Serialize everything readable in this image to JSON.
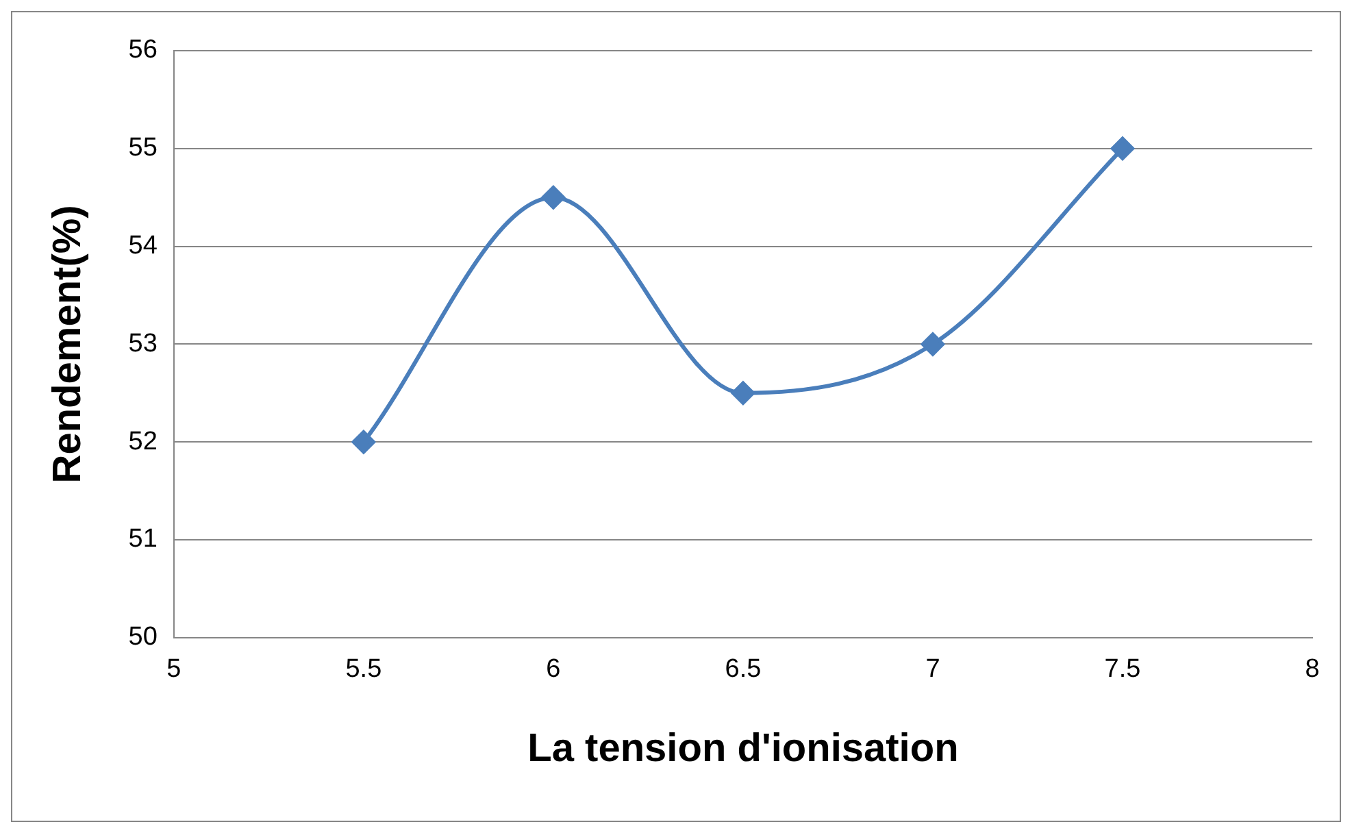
{
  "chart_data": {
    "type": "line",
    "xlabel": "La tension d'ionisation",
    "ylabel": "Rendement(%)",
    "x": [
      5.5,
      6,
      6.5,
      7,
      7.5
    ],
    "series": [
      {
        "color": "#4a7ebb",
        "values": [
          52,
          54.5,
          52.5,
          53,
          55
        ]
      }
    ],
    "xlim": [
      5,
      8
    ],
    "xticks": [
      5,
      5.5,
      6,
      6.5,
      7,
      7.5,
      8
    ],
    "ylim": [
      50,
      56
    ],
    "yticks": [
      50,
      51,
      52,
      53,
      54,
      55,
      56
    ],
    "grid": "y",
    "marker": "diamond",
    "line_style": "solid"
  }
}
